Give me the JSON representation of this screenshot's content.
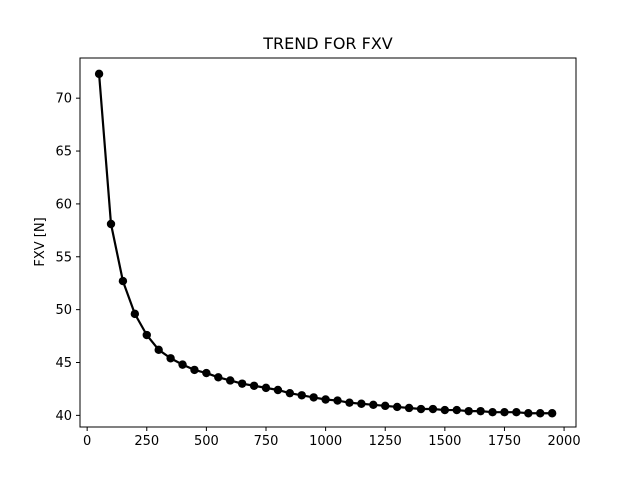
{
  "chart_data": {
    "type": "line",
    "title": "TREND FOR FXV",
    "xlabel": "",
    "ylabel": "FXV [N]",
    "xlim": [
      -30,
      2050
    ],
    "ylim": [
      38.9,
      73.8
    ],
    "x_ticks": [
      0,
      250,
      500,
      750,
      1000,
      1250,
      1500,
      1750,
      2000
    ],
    "y_ticks": [
      40,
      45,
      50,
      55,
      60,
      65,
      70
    ],
    "grid": false,
    "legend": "none",
    "series": [
      {
        "color": "#000000",
        "marker": "circle",
        "x": [
          50,
          100,
          150,
          200,
          250,
          300,
          350,
          400,
          450,
          500,
          550,
          600,
          650,
          700,
          750,
          800,
          850,
          900,
          950,
          1000,
          1050,
          1100,
          1150,
          1200,
          1250,
          1300,
          1350,
          1400,
          1450,
          1500,
          1550,
          1600,
          1650,
          1700,
          1750,
          1800,
          1850,
          1900,
          1950
        ],
        "y": [
          72.3,
          58.1,
          52.7,
          49.6,
          47.6,
          46.2,
          45.4,
          44.8,
          44.3,
          44.0,
          43.6,
          43.3,
          43.0,
          42.8,
          42.6,
          42.4,
          42.1,
          41.9,
          41.7,
          41.5,
          41.4,
          41.2,
          41.1,
          41.0,
          40.9,
          40.8,
          40.7,
          40.6,
          40.6,
          40.5,
          40.5,
          40.4,
          40.4,
          40.3,
          40.3,
          40.3,
          40.2,
          40.2,
          40.2
        ]
      }
    ]
  }
}
